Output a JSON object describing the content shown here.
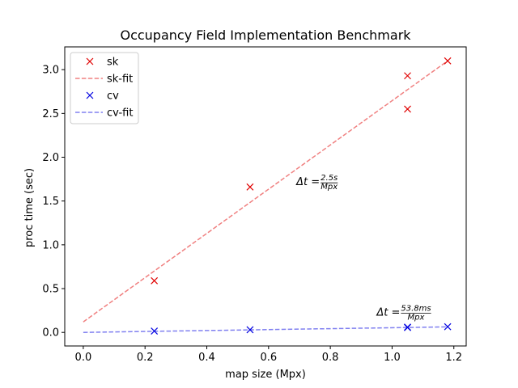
{
  "chart_data": {
    "type": "scatter",
    "title": "Occupancy Field Implementation Benchmark",
    "xlabel": "map size (Mpx)",
    "ylabel": "proc time (sec)",
    "xlim": [
      -0.06,
      1.24
    ],
    "ylim": [
      -0.155,
      3.26
    ],
    "xticks": [
      0.0,
      0.2,
      0.4,
      0.6,
      0.8,
      1.0,
      1.2
    ],
    "xtick_labels": [
      "0.0",
      "0.2",
      "0.4",
      "0.6",
      "0.8",
      "1.0",
      "1.2"
    ],
    "yticks": [
      0.0,
      0.5,
      1.0,
      1.5,
      2.0,
      2.5,
      3.0
    ],
    "ytick_labels": [
      "0.0",
      "0.5",
      "1.0",
      "1.5",
      "2.0",
      "2.5",
      "3.0"
    ],
    "grid": false,
    "legend_position": "top-left",
    "series": [
      {
        "name": "sk",
        "kind": "points",
        "marker": "x",
        "color": "#e00000",
        "x": [
          0.23,
          0.54,
          1.05,
          1.05,
          1.18
        ],
        "y": [
          0.59,
          1.66,
          2.93,
          2.55,
          3.1
        ]
      },
      {
        "name": "sk-fit",
        "kind": "line",
        "dash": true,
        "color": "#f08080",
        "x": [
          0.0,
          1.18
        ],
        "y": [
          0.12,
          3.1
        ]
      },
      {
        "name": "cv",
        "kind": "points",
        "marker": "x",
        "color": "#0000e0",
        "x": [
          0.23,
          0.54,
          1.05,
          1.05,
          1.18
        ],
        "y": [
          0.015,
          0.03,
          0.055,
          0.06,
          0.065
        ]
      },
      {
        "name": "cv-fit",
        "kind": "line",
        "dash": true,
        "color": "#8080f0",
        "x": [
          0.0,
          1.18
        ],
        "y": [
          0.0,
          0.063
        ]
      }
    ],
    "annotations": [
      {
        "prefix": "Δt = ",
        "numerator": "2.5s",
        "denominator": "Mpx",
        "x": 0.69,
        "y": 1.68
      },
      {
        "prefix": "Δt = ",
        "numerator": "53.8ms",
        "denominator": "Mpx",
        "x": 0.95,
        "y": 0.19
      }
    ]
  }
}
